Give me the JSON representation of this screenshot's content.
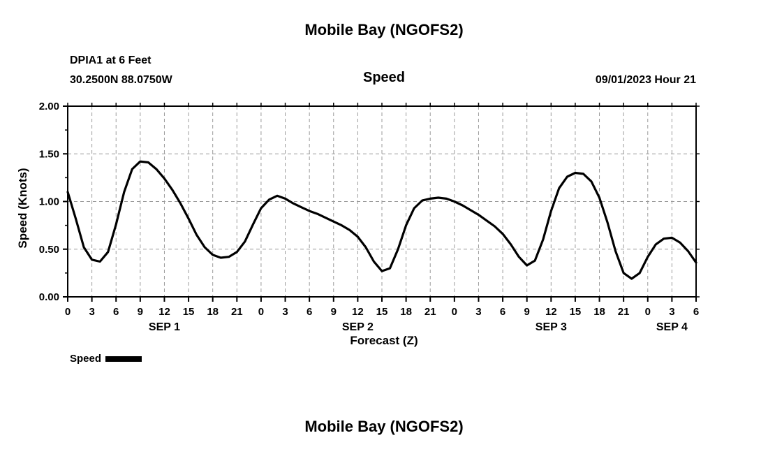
{
  "page": {
    "title": "Mobile Bay (NGOFS2)",
    "footer_title": "Mobile Bay (NGOFS2)"
  },
  "station": {
    "name": "DPIA1 at 6 Feet",
    "coordinates": "30.2500N  88.0750W"
  },
  "chart_header": {
    "title": "Speed",
    "datetime": "09/01/2023 Hour 21"
  },
  "legend": {
    "label": "Speed",
    "line_color": "#000000"
  },
  "chart_data": {
    "type": "line",
    "title": "Speed",
    "xlabel": "Forecast (Z)",
    "ylabel": "Speed (Knots)",
    "ylim": [
      0,
      2
    ],
    "xlim_hours": [
      0,
      78
    ],
    "grid": true,
    "grid_style": "dashed",
    "grid_color": "#9a9a9a",
    "line_color": "#000000",
    "yticks": [
      0,
      0.5,
      1,
      1.5,
      2
    ],
    "ytick_labels": [
      "0.00",
      "0.50",
      "1.00",
      "1.50",
      "2.00"
    ],
    "yticks_minor": [
      0.25,
      0.75,
      1.25,
      1.75
    ],
    "ygrid": [
      0.5,
      1,
      1.5
    ],
    "xticks_hours": [
      0,
      3,
      6,
      9,
      12,
      15,
      18,
      21,
      24,
      27,
      30,
      33,
      36,
      39,
      42,
      45,
      48,
      51,
      54,
      57,
      60,
      63,
      66,
      69,
      72,
      75,
      78
    ],
    "xtick_labels": [
      "0",
      "3",
      "6",
      "9",
      "12",
      "15",
      "18",
      "21",
      "0",
      "3",
      "6",
      "9",
      "12",
      "15",
      "18",
      "21",
      "0",
      "3",
      "6",
      "9",
      "12",
      "15",
      "18",
      "21",
      "0",
      "3",
      "6"
    ],
    "day_labels": [
      {
        "label": "SEP 1",
        "hour": 12
      },
      {
        "label": "SEP 2",
        "hour": 36
      },
      {
        "label": "SEP 3",
        "hour": 60
      },
      {
        "label": "SEP 4",
        "hour": 75
      }
    ],
    "series": [
      {
        "name": "Speed",
        "x": [
          0,
          1,
          2,
          3,
          4,
          5,
          6,
          7,
          8,
          9,
          10,
          11,
          12,
          13,
          14,
          15,
          16,
          17,
          18,
          19,
          20,
          21,
          22,
          23,
          24,
          25,
          26,
          27,
          28,
          29,
          30,
          31,
          32,
          33,
          34,
          35,
          36,
          37,
          38,
          39,
          40,
          41,
          42,
          43,
          44,
          45,
          46,
          47,
          48,
          49,
          50,
          51,
          52,
          53,
          54,
          55,
          56,
          57,
          58,
          59,
          60,
          61,
          62,
          63,
          64,
          65,
          66,
          67,
          68,
          69,
          70,
          71,
          72,
          73,
          74,
          75,
          76,
          77,
          78
        ],
        "y": [
          1.1,
          0.82,
          0.52,
          0.39,
          0.37,
          0.47,
          0.76,
          1.1,
          1.34,
          1.42,
          1.41,
          1.34,
          1.24,
          1.12,
          0.98,
          0.82,
          0.65,
          0.52,
          0.44,
          0.41,
          0.42,
          0.47,
          0.58,
          0.76,
          0.93,
          1.02,
          1.06,
          1.03,
          0.98,
          0.94,
          0.9,
          0.87,
          0.83,
          0.79,
          0.75,
          0.7,
          0.63,
          0.52,
          0.37,
          0.27,
          0.3,
          0.5,
          0.75,
          0.93,
          1.01,
          1.03,
          1.04,
          1.03,
          1.0,
          0.96,
          0.91,
          0.86,
          0.8,
          0.74,
          0.66,
          0.55,
          0.42,
          0.33,
          0.38,
          0.6,
          0.9,
          1.14,
          1.26,
          1.3,
          1.29,
          1.21,
          1.04,
          0.78,
          0.48,
          0.25,
          0.19,
          0.25,
          0.42,
          0.55,
          0.61,
          0.62,
          0.57,
          0.48,
          0.36
        ]
      }
    ]
  }
}
